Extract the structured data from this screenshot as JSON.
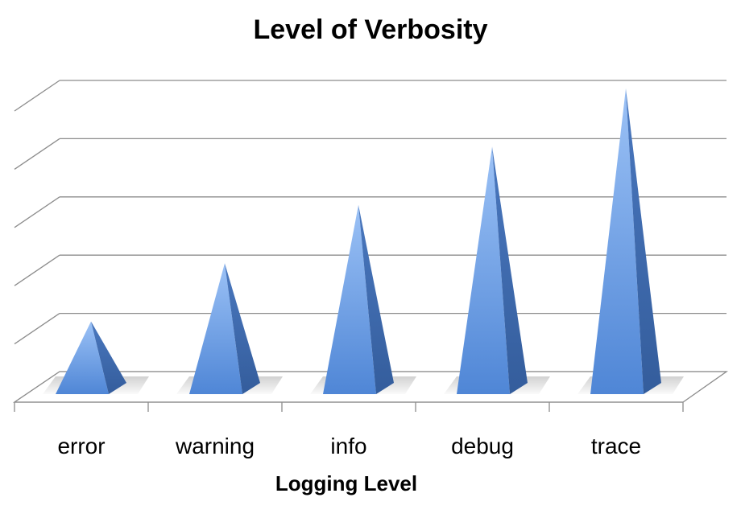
{
  "chart_data": {
    "type": "bar",
    "subtype": "3d-pyramid",
    "title": "Level of Verbosity",
    "xlabel": "Logging Level",
    "ylabel": "",
    "categories": [
      "error",
      "warning",
      "info",
      "debug",
      "trace"
    ],
    "values": [
      1,
      2,
      3,
      4,
      5
    ],
    "ylim": [
      0,
      5.5
    ],
    "grid": true,
    "legend": "none",
    "colors": {
      "pyramid_light": "#8ab4f2",
      "pyramid_mid": "#5a8fd8",
      "pyramid_dark": "#3a62a0",
      "grid": "#8c8c8c"
    }
  }
}
